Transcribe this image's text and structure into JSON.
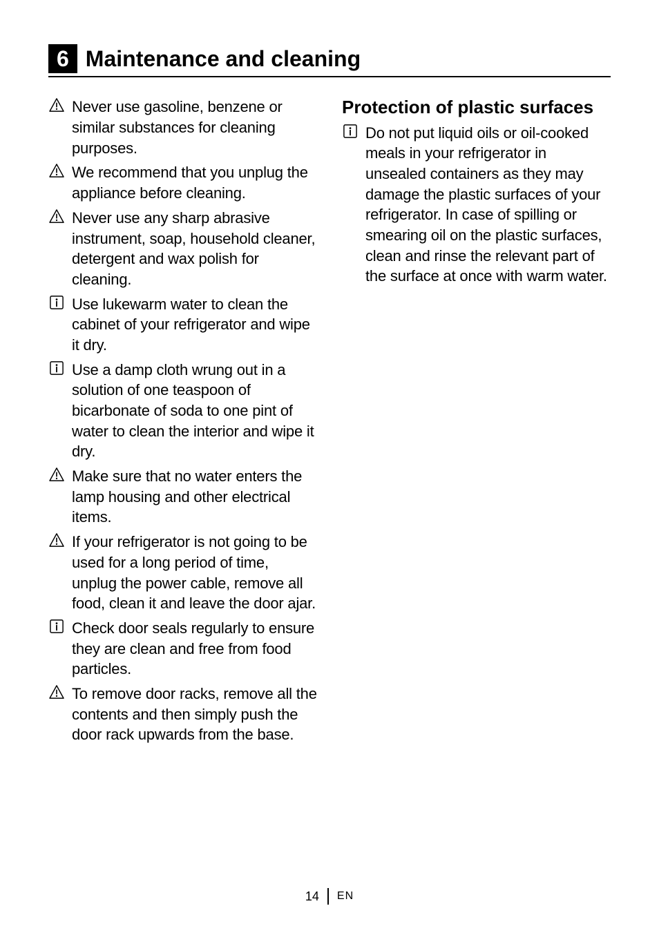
{
  "section": {
    "number": "6",
    "title": "Maintenance and cleaning"
  },
  "left_items": [
    {
      "icon": "warning",
      "text": "Never use gasoline, benzene or similar substances for cleaning purposes."
    },
    {
      "icon": "warning",
      "text": "We recommend that you unplug the appliance before cleaning."
    },
    {
      "icon": "warning",
      "text": "Never use any sharp abrasive instrument, soap, household cleaner, detergent and wax polish for cleaning."
    },
    {
      "icon": "info",
      "text": "Use lukewarm water to clean the cabinet of your refrigerator and wipe it dry."
    },
    {
      "icon": "info",
      "text": "Use a damp cloth wrung out in a solution of one teaspoon of bicarbonate of soda to one pint of water to clean the interior and wipe it dry."
    },
    {
      "icon": "warning",
      "text": "Make sure that no water enters the lamp housing and other electrical items."
    },
    {
      "icon": "warning",
      "text": "If your refrigerator is not going to be used for a long period of time, unplug the power cable, remove all food, clean it and leave the door ajar."
    },
    {
      "icon": "info",
      "text": "Check door seals regularly to ensure they are clean and free from food particles."
    },
    {
      "icon": "warning",
      "text": "To remove door racks, remove all the contents and then simply push the door rack upwards from the base."
    }
  ],
  "right": {
    "heading": "Protection of plastic surfaces",
    "items": [
      {
        "icon": "info",
        "text": "Do not put  liquid oils or oil-cooked meals in your refrigerator in unsealed containers as they may damage the plastic surfaces of your refrigerator. In case of spilling or smearing oil on the plastic surfaces, clean and rinse the relevant part of the surface at once with warm water."
      }
    ]
  },
  "footer": {
    "page": "14",
    "lang": "EN"
  },
  "style": {
    "colors": {
      "text": "#000000",
      "bg": "#ffffff",
      "section_num_bg": "#000000",
      "section_num_fg": "#ffffff",
      "rule": "#000000"
    },
    "fonts": {
      "section_title_size": 32,
      "sub_heading_size": 26,
      "body_size": 22,
      "footer_size": 18,
      "footer_lang_size": 16
    },
    "icons": {
      "warning": "triangle-exclamation-outline",
      "info": "square-i-outline"
    }
  }
}
